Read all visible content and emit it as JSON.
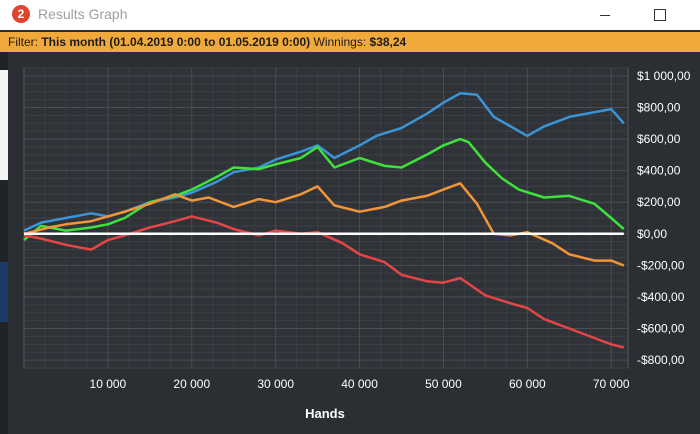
{
  "window": {
    "title": "Results Graph",
    "app_icon_glyph": "2",
    "minimize_icon": "minimize-icon",
    "maximize_icon": "maximize-icon"
  },
  "filter": {
    "label": "Filter:",
    "period": "This month (01.04.2019 0:00 to 01.05.2019 0:00)",
    "winnings_label": "Winnings:",
    "winnings_value": "$38,24"
  },
  "colors": {
    "accent_bar": "#f2a93b",
    "background": "#2b2e33",
    "grid": "#4a4e55",
    "zero_line": "#ffffff"
  },
  "chart_data": {
    "type": "line",
    "xlabel": "Hands",
    "ylabel": "",
    "xlim": [
      0,
      72000
    ],
    "ylim": [
      -850,
      1050
    ],
    "x_ticks": [
      10000,
      20000,
      30000,
      40000,
      50000,
      60000,
      70000
    ],
    "x_tick_labels": [
      "10 000",
      "20 000",
      "30 000",
      "40 000",
      "50 000",
      "60 000",
      "70 000"
    ],
    "y_ticks": [
      1000,
      800,
      600,
      400,
      200,
      0,
      -200,
      -400,
      -600,
      -800
    ],
    "y_tick_labels": [
      "$1 000,00",
      "$800,00",
      "$600,00",
      "$400,00",
      "$200,00",
      "$0,00",
      "-$200,00",
      "-$400,00",
      "-$600,00",
      "-$800,00"
    ],
    "grid": true,
    "series": [
      {
        "color": "#3a95d8",
        "x": [
          0,
          2000,
          5000,
          8000,
          10000,
          12000,
          15000,
          18000,
          20000,
          23000,
          25000,
          28000,
          30000,
          33000,
          35000,
          37000,
          40000,
          42000,
          45000,
          48000,
          50000,
          52000,
          54000,
          56000,
          58000,
          60000,
          62000,
          65000,
          68000,
          70000,
          71500
        ],
        "y": [
          20,
          70,
          100,
          130,
          110,
          140,
          200,
          230,
          260,
          330,
          390,
          420,
          470,
          520,
          560,
          480,
          560,
          620,
          670,
          760,
          830,
          890,
          880,
          740,
          680,
          620,
          680,
          740,
          770,
          790,
          700
        ]
      },
      {
        "color": "#3fe23b",
        "x": [
          0,
          2000,
          5000,
          8000,
          10000,
          12000,
          15000,
          18000,
          20000,
          23000,
          25000,
          28000,
          30000,
          33000,
          35000,
          37000,
          40000,
          43000,
          45000,
          48000,
          50000,
          52000,
          53000,
          55000,
          57000,
          59000,
          62000,
          65000,
          68000,
          70000,
          71500
        ],
        "y": [
          -40,
          50,
          20,
          40,
          60,
          100,
          200,
          240,
          280,
          360,
          420,
          410,
          440,
          480,
          550,
          420,
          480,
          430,
          420,
          500,
          560,
          600,
          580,
          450,
          350,
          280,
          230,
          240,
          190,
          100,
          30
        ]
      },
      {
        "color": "#f29538",
        "x": [
          0,
          3000,
          5000,
          8000,
          10000,
          12000,
          15000,
          18000,
          20000,
          22000,
          25000,
          28000,
          30000,
          33000,
          35000,
          37000,
          40000,
          43000,
          45000,
          48000,
          50000,
          52000,
          54000,
          56000,
          58000,
          60000,
          63000,
          65000,
          68000,
          70000,
          71500
        ],
        "y": [
          0,
          40,
          60,
          80,
          110,
          140,
          190,
          250,
          210,
          230,
          170,
          220,
          200,
          250,
          300,
          180,
          140,
          170,
          210,
          240,
          280,
          320,
          190,
          0,
          -10,
          10,
          -60,
          -130,
          -170,
          -170,
          -200
        ]
      },
      {
        "color": "#e64545",
        "x": [
          0,
          2000,
          5000,
          8000,
          10000,
          12000,
          15000,
          18000,
          20000,
          23000,
          25000,
          28000,
          30000,
          33000,
          35000,
          38000,
          40000,
          43000,
          45000,
          48000,
          50000,
          52000,
          55000,
          58000,
          60000,
          62000,
          65000,
          68000,
          70000,
          71500
        ],
        "y": [
          -10,
          -30,
          -70,
          -100,
          -40,
          -10,
          40,
          80,
          110,
          70,
          30,
          -10,
          20,
          0,
          10,
          -60,
          -130,
          -180,
          -260,
          -300,
          -310,
          -280,
          -390,
          -440,
          -470,
          -540,
          -600,
          -660,
          -700,
          -720
        ]
      },
      {
        "color": "#ffffff",
        "x": [
          0,
          71500
        ],
        "y": [
          0,
          0
        ]
      }
    ]
  }
}
